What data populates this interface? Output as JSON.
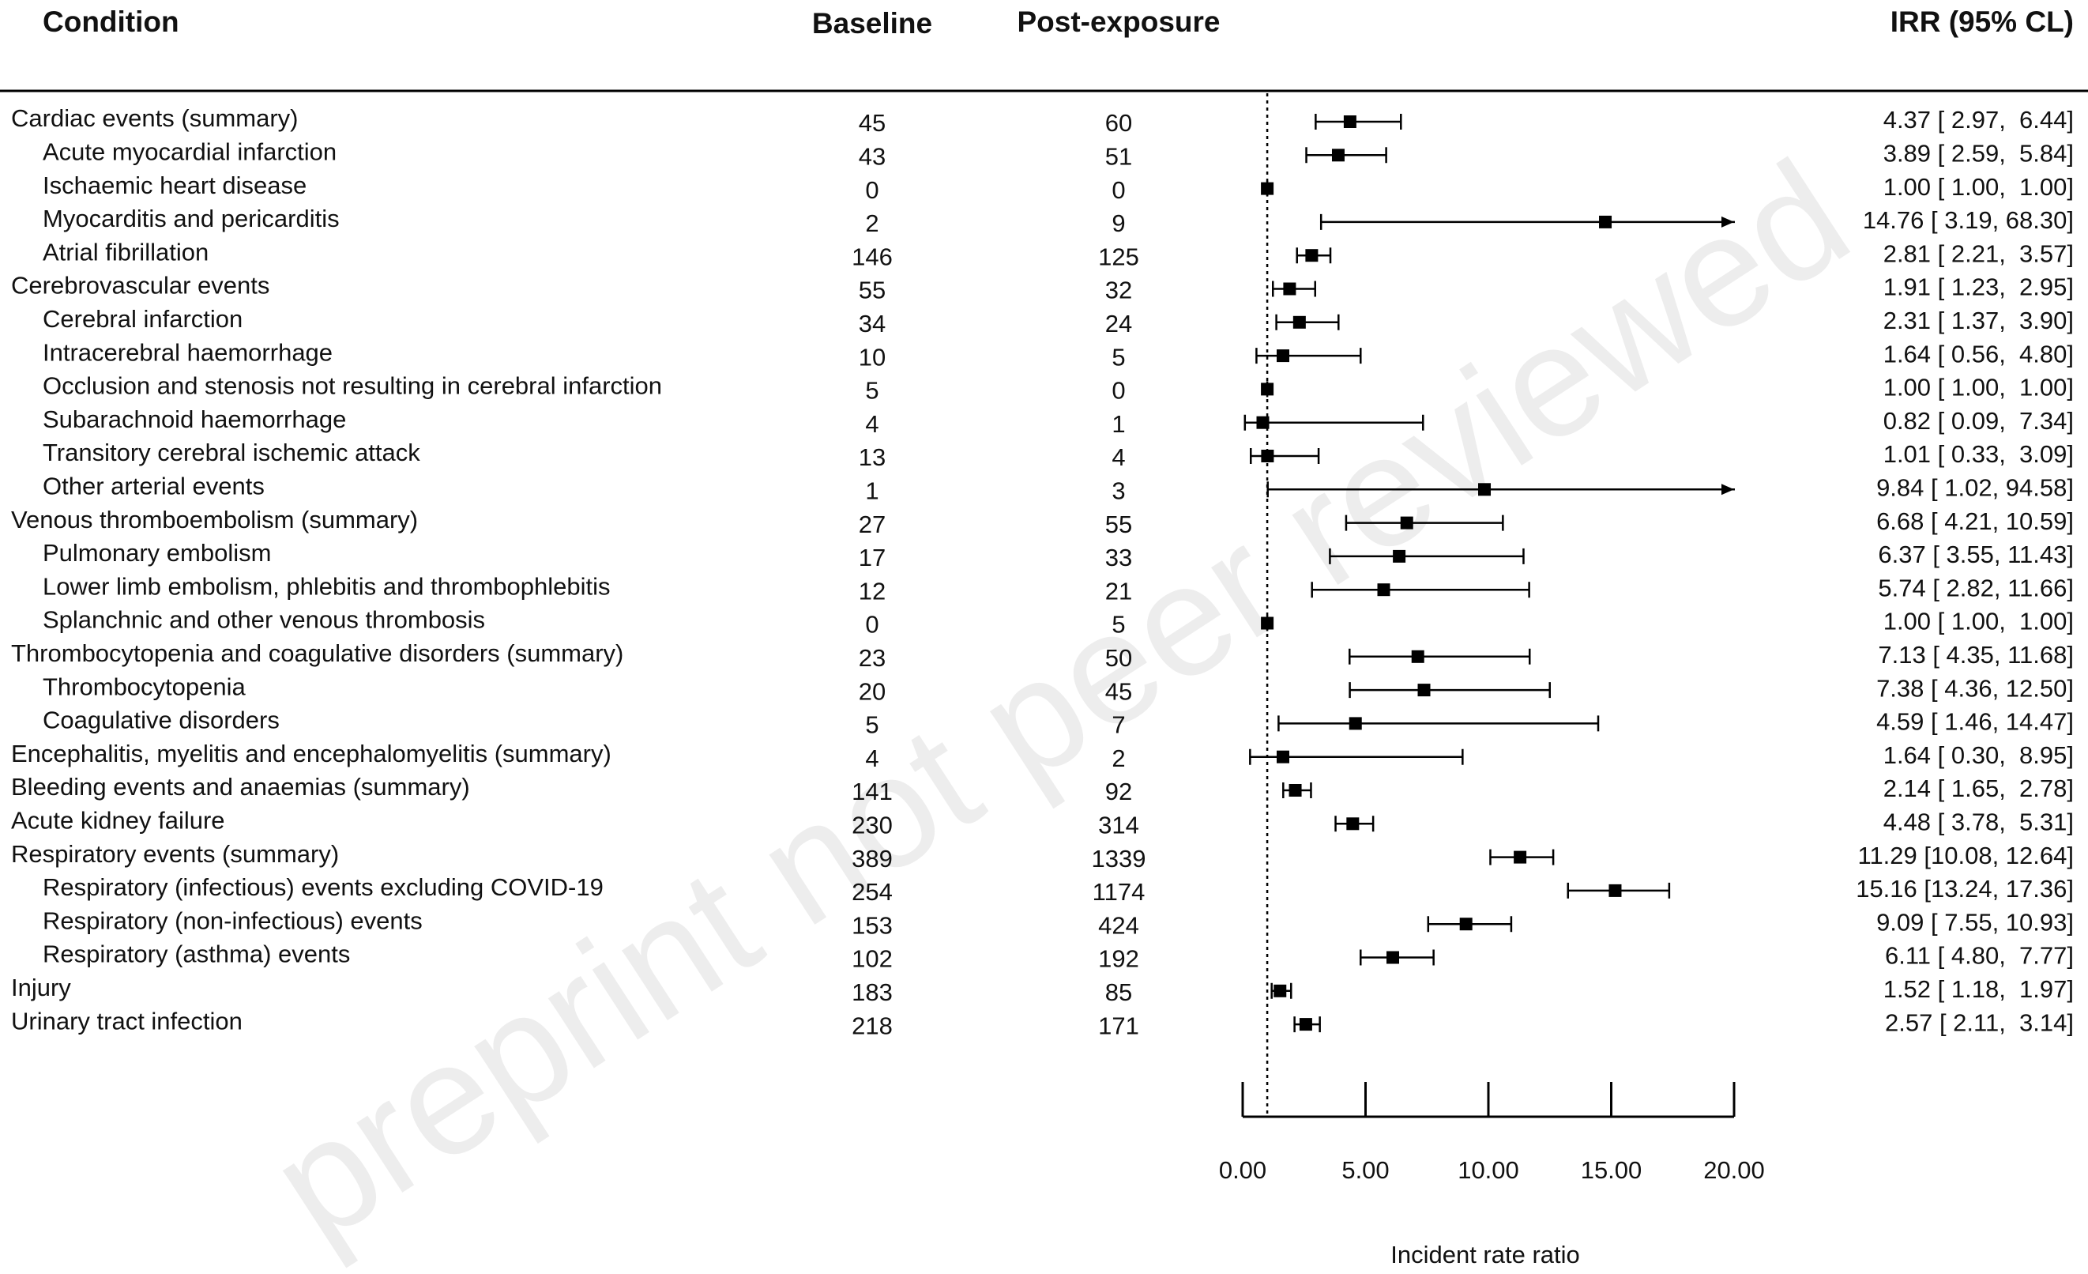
{
  "chart_data": {
    "type": "forest",
    "headers": {
      "condition": "Condition",
      "baseline": "Baseline",
      "post_exposure": "Post-exposure",
      "irr": "IRR (95% CL)"
    },
    "categories": [
      "Cardiac events (summary)",
      "Acute myocardial infarction",
      "Ischaemic heart disease",
      "Myocarditis and pericarditis",
      "Atrial fibrillation",
      "Cerebrovascular events",
      "Cerebral infarction",
      "Intracerebral haemorrhage",
      "Occlusion and stenosis not resulting in cerebral infarction",
      "Subarachnoid haemorrhage",
      "Transitory cerebral ischemic attack",
      "Other arterial events",
      "Venous thromboembolism (summary)",
      "Pulmonary embolism",
      "Lower limb embolism, phlebitis and thrombophlebitis",
      "Splanchnic and other venous thrombosis",
      "Thrombocytopenia and coagulative disorders (summary)",
      "Thrombocytopenia",
      "Coagulative disorders",
      "Encephalitis, myelitis and encephalomyelitis (summary)",
      "Bleeding events and anaemias (summary)",
      "Acute kidney failure",
      "Respiratory events (summary)",
      "Respiratory (infectious) events excluding COVID-19",
      "Respiratory (non-infectious) events",
      "Respiratory (asthma) events",
      "Injury",
      "Urinary tract infection"
    ],
    "level": [
      0,
      1,
      1,
      1,
      1,
      0,
      1,
      1,
      1,
      1,
      1,
      1,
      0,
      1,
      1,
      1,
      0,
      1,
      1,
      0,
      0,
      0,
      0,
      1,
      1,
      1,
      0,
      0
    ],
    "baseline": [
      45,
      43,
      0,
      2,
      146,
      55,
      34,
      10,
      5,
      4,
      13,
      1,
      27,
      17,
      12,
      0,
      23,
      20,
      5,
      4,
      141,
      230,
      389,
      254,
      153,
      102,
      183,
      218
    ],
    "post_exposure": [
      60,
      51,
      0,
      9,
      125,
      32,
      24,
      5,
      0,
      1,
      4,
      3,
      55,
      33,
      21,
      5,
      50,
      45,
      7,
      2,
      92,
      314,
      1339,
      1174,
      424,
      192,
      85,
      171
    ],
    "irr": [
      4.37,
      3.89,
      1.0,
      14.76,
      2.81,
      1.91,
      2.31,
      1.64,
      1.0,
      0.82,
      1.01,
      9.84,
      6.68,
      6.37,
      5.74,
      1.0,
      7.13,
      7.38,
      4.59,
      1.64,
      2.14,
      4.48,
      11.29,
      15.16,
      9.09,
      6.11,
      1.52,
      2.57
    ],
    "lower": [
      2.97,
      2.59,
      1.0,
      3.19,
      2.21,
      1.23,
      1.37,
      0.56,
      1.0,
      0.09,
      0.33,
      1.02,
      4.21,
      3.55,
      2.82,
      1.0,
      4.35,
      4.36,
      1.46,
      0.3,
      1.65,
      3.78,
      10.08,
      13.24,
      7.55,
      4.8,
      1.18,
      2.11
    ],
    "upper": [
      6.44,
      5.84,
      1.0,
      68.3,
      3.57,
      2.95,
      3.9,
      4.8,
      1.0,
      7.34,
      3.09,
      94.58,
      10.59,
      11.43,
      11.66,
      1.0,
      11.68,
      12.5,
      14.47,
      8.95,
      2.78,
      5.31,
      12.64,
      17.36,
      10.93,
      7.77,
      1.97,
      3.14
    ],
    "value_labels": [
      "4.37 [ 2.97,  6.44]",
      "3.89 [ 2.59,  5.84]",
      "1.00 [ 1.00,  1.00]",
      "14.76 [ 3.19, 68.30]",
      "2.81 [ 2.21,  3.57]",
      "1.91 [ 1.23,  2.95]",
      "2.31 [ 1.37,  3.90]",
      "1.64 [ 0.56,  4.80]",
      "1.00 [ 1.00,  1.00]",
      "0.82 [ 0.09,  7.34]",
      "1.01 [ 0.33,  3.09]",
      "9.84 [ 1.02, 94.58]",
      "6.68 [ 4.21, 10.59]",
      "6.37 [ 3.55, 11.43]",
      "5.74 [ 2.82, 11.66]",
      "1.00 [ 1.00,  1.00]",
      "7.13 [ 4.35, 11.68]",
      "7.38 [ 4.36, 12.50]",
      "4.59 [ 1.46, 14.47]",
      "1.64 [ 0.30,  8.95]",
      "2.14 [ 1.65,  2.78]",
      "4.48 [ 3.78,  5.31]",
      "11.29 [10.08, 12.64]",
      "15.16 [13.24, 17.36]",
      "9.09 [ 7.55, 10.93]",
      "6.11 [ 4.80,  7.77]",
      "1.52 [ 1.18,  1.97]",
      "2.57 [ 2.11,  3.14]"
    ],
    "xlim": [
      0,
      20
    ],
    "xticks": [
      {
        "value": 0,
        "label": "0.00"
      },
      {
        "value": 5,
        "label": "5.00"
      },
      {
        "value": 10,
        "label": "10.00"
      },
      {
        "value": 15,
        "label": "15.00"
      },
      {
        "value": 20,
        "label": "20.00"
      }
    ],
    "xlabel": "Incident rate ratio",
    "reference_line": 1,
    "color": "#000000"
  },
  "watermark": "preprint not peer reviewed"
}
